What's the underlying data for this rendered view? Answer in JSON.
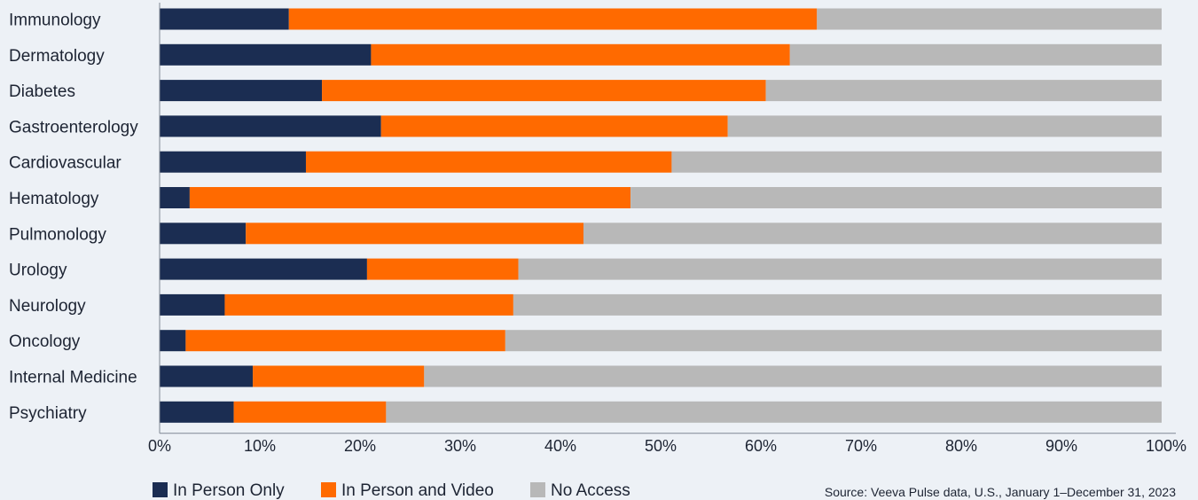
{
  "chart_data": {
    "type": "bar",
    "orientation": "horizontal",
    "stacked": true,
    "categories": [
      "Immunology",
      "Dermatology",
      "Diabetes",
      "Gastroenterology",
      "Cardiovascular",
      "Hematology",
      "Pulmonology",
      "Urology",
      "Neurology",
      "Oncology",
      "Internal Medicine",
      "Psychiatry"
    ],
    "series": [
      {
        "name": "In Person Only",
        "color": "#1b2d52",
        "values": [
          12.9,
          21.1,
          16.2,
          22.1,
          14.6,
          3.0,
          8.6,
          20.7,
          6.5,
          2.6,
          9.3,
          7.4
        ]
      },
      {
        "name": "In Person and Video",
        "color": "#ff6a00",
        "values": [
          52.7,
          41.8,
          44.3,
          34.6,
          36.5,
          44.0,
          33.7,
          15.1,
          28.8,
          31.9,
          17.1,
          15.2
        ]
      },
      {
        "name": "No Access",
        "color": "#b8b8b8",
        "values": [
          34.4,
          37.1,
          39.5,
          43.3,
          48.9,
          53.0,
          57.7,
          64.2,
          64.7,
          65.5,
          73.6,
          77.4
        ]
      }
    ],
    "xlim": [
      0,
      100
    ],
    "x_ticks": [
      "0%",
      "10%",
      "20%",
      "30%",
      "40%",
      "50%",
      "60%",
      "70%",
      "80%",
      "90%",
      "100%"
    ],
    "legend": "bottom-left",
    "grid": false
  },
  "source": "Source: Veeva Pulse data, U.S., January 1–December 31, 2023"
}
